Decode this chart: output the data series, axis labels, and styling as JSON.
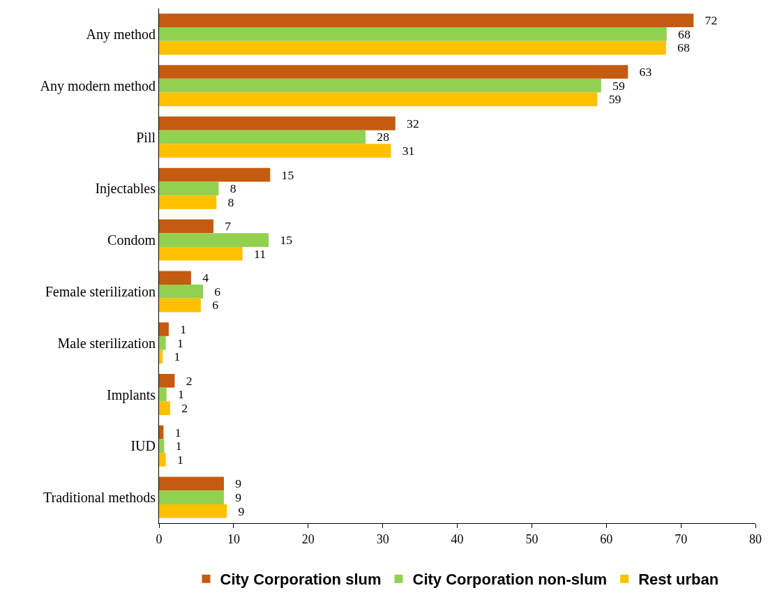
{
  "chart_data": {
    "type": "bar",
    "orientation": "horizontal",
    "categories": [
      "Any method",
      "Any modern method",
      "Pill",
      "Injectables",
      "Condom",
      "Female sterilization",
      "Male sterilization",
      "Implants",
      "IUD",
      "Traditional methods"
    ],
    "series": [
      {
        "name": "City Corporation slum",
        "color": "#c55a11",
        "values": [
          71.7,
          62.9,
          31.7,
          14.9,
          7.3,
          4.3,
          1.3,
          2.1,
          0.6,
          8.7
        ],
        "value_labels": [
          "72",
          "63",
          "32",
          "15",
          "7",
          "4",
          "1",
          "2",
          "1",
          "9"
        ]
      },
      {
        "name": "City Corporation non-slum",
        "color": "#92d050",
        "values": [
          68.1,
          59.3,
          27.7,
          8.0,
          14.7,
          5.9,
          0.9,
          1.0,
          0.7,
          8.7
        ],
        "value_labels": [
          "68",
          "59",
          "28",
          "8",
          "15",
          "6",
          "1",
          "1",
          "1",
          "9"
        ]
      },
      {
        "name": "Rest urban",
        "color": "#ffc000",
        "values": [
          68.0,
          58.8,
          31.1,
          7.7,
          11.2,
          5.6,
          0.5,
          1.5,
          0.9,
          9.1
        ],
        "value_labels": [
          "68",
          "59",
          "31",
          "8",
          "11",
          "6",
          "1",
          "2",
          "1",
          "9"
        ]
      }
    ],
    "xlim": [
      0,
      80
    ],
    "xticks": [
      0,
      10,
      20,
      30,
      40,
      50,
      60,
      70,
      80
    ],
    "grid": false,
    "legend": "bottom"
  }
}
